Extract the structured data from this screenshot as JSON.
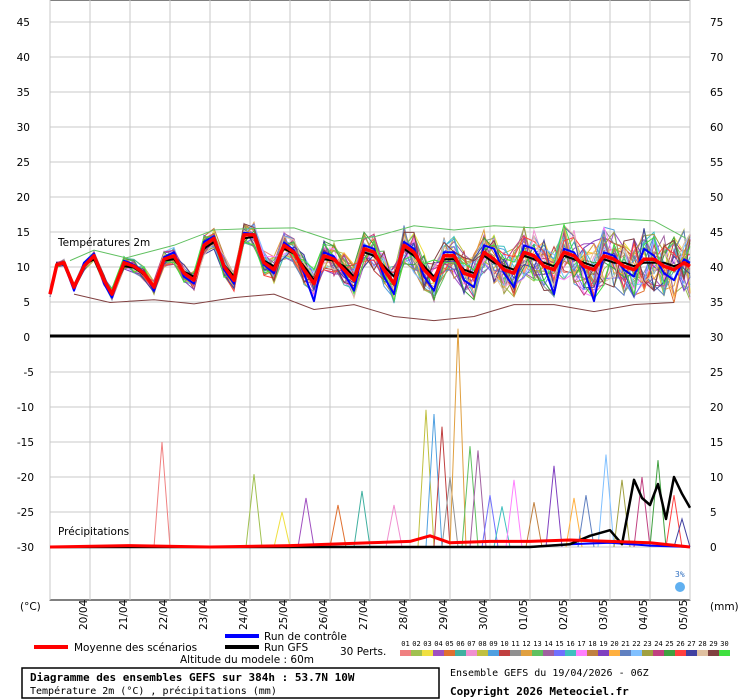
{
  "chart_data": {
    "type": "line",
    "temperature_axis_ticks_left": [
      "45",
      "40",
      "35",
      "30",
      "25",
      "20",
      "15",
      "10",
      "5",
      "0"
    ],
    "temperature_axis_ticks_right": [
      "75",
      "70",
      "65",
      "60",
      "55",
      "50",
      "45",
      "40",
      "35",
      "30"
    ],
    "precip_axis_ticks_left": [
      "-5",
      "-10",
      "-15",
      "-20",
      "-25",
      "-30"
    ],
    "precip_axis_ticks_right": [
      "25",
      "20",
      "15",
      "10",
      "5",
      "0"
    ],
    "left_unit": "(°C)",
    "right_unit": "(mm)",
    "x_dates": [
      "20/04",
      "21/04",
      "22/04",
      "23/04",
      "24/04",
      "25/04",
      "26/04",
      "27/04",
      "28/04",
      "29/04",
      "30/04",
      "01/05",
      "02/05",
      "03/05",
      "04/05",
      "05/05"
    ],
    "temp_panel_label": "Températures 2m",
    "precip_panel_label": "Précipitations",
    "x_days_range": [
      0,
      16
    ],
    "temp_ylim": [
      0,
      45
    ],
    "precip_ylim_mm": [
      0,
      30
    ],
    "precip_ylim_left": [
      -35,
      0
    ],
    "mean_temperature_2m": [
      [
        0.0,
        6.0
      ],
      [
        0.17,
        10.2
      ],
      [
        0.35,
        10.5
      ],
      [
        0.6,
        7.0
      ],
      [
        0.85,
        10.0
      ],
      [
        1.1,
        11.5
      ],
      [
        1.35,
        8.0
      ],
      [
        1.55,
        6.0
      ],
      [
        1.85,
        10.5
      ],
      [
        2.1,
        10.0
      ],
      [
        2.35,
        9.0
      ],
      [
        2.6,
        7.0
      ],
      [
        2.85,
        11.0
      ],
      [
        3.1,
        11.5
      ],
      [
        3.35,
        9.0
      ],
      [
        3.6,
        8.0
      ],
      [
        3.85,
        13.0
      ],
      [
        4.1,
        14.0
      ],
      [
        4.35,
        10.0
      ],
      [
        4.6,
        8.0
      ],
      [
        4.85,
        14.5
      ],
      [
        5.1,
        14.5
      ],
      [
        5.35,
        10.5
      ],
      [
        5.6,
        9.5
      ],
      [
        5.85,
        13.0
      ],
      [
        6.1,
        12.0
      ],
      [
        6.35,
        9.5
      ],
      [
        6.6,
        7.5
      ],
      [
        6.85,
        11.5
      ],
      [
        7.1,
        11.0
      ],
      [
        7.35,
        9.5
      ],
      [
        7.6,
        8.0
      ],
      [
        7.85,
        12.5
      ],
      [
        8.1,
        12.0
      ],
      [
        8.35,
        9.5
      ],
      [
        8.6,
        7.5
      ],
      [
        8.85,
        13.0
      ],
      [
        9.1,
        12.0
      ],
      [
        9.35,
        9.5
      ],
      [
        9.6,
        8.0
      ],
      [
        9.85,
        11.5
      ],
      [
        10.1,
        11.5
      ],
      [
        10.35,
        9.0
      ],
      [
        10.6,
        8.5
      ],
      [
        10.85,
        12.0
      ],
      [
        11.1,
        11.0
      ],
      [
        11.35,
        9.5
      ],
      [
        11.6,
        9.0
      ],
      [
        11.85,
        12.0
      ],
      [
        12.1,
        11.5
      ],
      [
        12.35,
        10.0
      ],
      [
        12.6,
        9.5
      ],
      [
        12.85,
        12.0
      ],
      [
        13.1,
        11.5
      ],
      [
        13.35,
        10.0
      ],
      [
        13.6,
        9.5
      ],
      [
        13.85,
        11.5
      ],
      [
        14.1,
        11.0
      ],
      [
        14.35,
        10.0
      ],
      [
        14.6,
        9.5
      ],
      [
        14.85,
        11.0
      ],
      [
        15.1,
        11.0
      ],
      [
        15.35,
        10.0
      ],
      [
        15.6,
        9.5
      ],
      [
        15.85,
        10.5
      ],
      [
        16.0,
        10.0
      ]
    ],
    "control_run_temperature_2m": [
      [
        0.0,
        6.0
      ],
      [
        0.17,
        10.3
      ],
      [
        0.35,
        10.4
      ],
      [
        0.6,
        6.5
      ],
      [
        0.85,
        10.5
      ],
      [
        1.1,
        11.8
      ],
      [
        1.35,
        7.5
      ],
      [
        1.55,
        5.5
      ],
      [
        1.85,
        10.8
      ],
      [
        2.1,
        10.2
      ],
      [
        2.35,
        9.2
      ],
      [
        2.6,
        6.5
      ],
      [
        2.85,
        11.3
      ],
      [
        3.1,
        12.0
      ],
      [
        3.35,
        8.5
      ],
      [
        3.6,
        7.5
      ],
      [
        3.85,
        13.5
      ],
      [
        4.1,
        14.3
      ],
      [
        4.35,
        9.5
      ],
      [
        4.6,
        7.5
      ],
      [
        4.85,
        14.8
      ],
      [
        5.1,
        14.6
      ],
      [
        5.35,
        10.2
      ],
      [
        5.6,
        9.0
      ],
      [
        5.85,
        13.4
      ],
      [
        6.1,
        12.3
      ],
      [
        6.35,
        9.0
      ],
      [
        6.6,
        5.0
      ],
      [
        6.85,
        12.0
      ],
      [
        7.1,
        11.4
      ],
      [
        7.35,
        9.0
      ],
      [
        7.6,
        6.5
      ],
      [
        7.85,
        13.0
      ],
      [
        8.1,
        12.5
      ],
      [
        8.35,
        8.5
      ],
      [
        8.6,
        6.0
      ],
      [
        8.85,
        13.5
      ],
      [
        9.1,
        12.5
      ],
      [
        9.35,
        8.5
      ],
      [
        9.6,
        6.5
      ],
      [
        9.85,
        12.0
      ],
      [
        10.1,
        12.0
      ],
      [
        10.35,
        8.0
      ],
      [
        10.6,
        7.0
      ],
      [
        10.85,
        13.0
      ],
      [
        11.1,
        12.5
      ],
      [
        11.35,
        9.0
      ],
      [
        11.6,
        7.0
      ],
      [
        11.85,
        13.0
      ],
      [
        12.1,
        12.5
      ],
      [
        12.35,
        10.0
      ],
      [
        12.6,
        6.0
      ],
      [
        12.85,
        12.5
      ],
      [
        13.1,
        12.0
      ],
      [
        13.35,
        9.5
      ],
      [
        13.6,
        5.0
      ],
      [
        13.85,
        12.0
      ],
      [
        14.1,
        11.5
      ],
      [
        14.35,
        9.5
      ],
      [
        14.6,
        8.5
      ],
      [
        14.85,
        12.5
      ],
      [
        15.1,
        11.5
      ],
      [
        15.35,
        9.0
      ],
      [
        15.6,
        8.0
      ],
      [
        15.85,
        11.0
      ],
      [
        16.0,
        10.5
      ]
    ],
    "gfs_run_temperature_2m": [
      [
        0.0,
        6.0
      ],
      [
        0.17,
        10.4
      ],
      [
        0.35,
        10.2
      ],
      [
        0.6,
        6.8
      ],
      [
        0.85,
        10.2
      ],
      [
        1.1,
        11.0
      ],
      [
        1.35,
        7.8
      ],
      [
        1.55,
        6.2
      ],
      [
        1.85,
        10.0
      ],
      [
        2.1,
        9.8
      ],
      [
        2.35,
        8.8
      ],
      [
        2.6,
        7.2
      ],
      [
        2.85,
        10.8
      ],
      [
        3.1,
        11.0
      ],
      [
        3.35,
        9.2
      ],
      [
        3.6,
        8.5
      ],
      [
        3.85,
        12.5
      ],
      [
        4.1,
        13.5
      ],
      [
        4.35,
        10.2
      ],
      [
        4.6,
        8.5
      ],
      [
        4.85,
        14.0
      ],
      [
        5.1,
        14.2
      ],
      [
        5.35,
        10.8
      ],
      [
        5.6,
        10.0
      ],
      [
        5.85,
        12.5
      ],
      [
        6.1,
        11.8
      ],
      [
        6.35,
        10.0
      ],
      [
        6.6,
        8.0
      ],
      [
        6.85,
        11.0
      ],
      [
        7.1,
        10.8
      ],
      [
        7.35,
        10.0
      ],
      [
        7.6,
        8.5
      ],
      [
        7.85,
        12.0
      ],
      [
        8.1,
        11.5
      ],
      [
        8.35,
        10.0
      ],
      [
        8.6,
        8.5
      ],
      [
        8.85,
        12.5
      ],
      [
        9.1,
        11.5
      ],
      [
        9.35,
        10.0
      ],
      [
        9.6,
        8.5
      ],
      [
        9.85,
        11.0
      ],
      [
        10.1,
        11.0
      ],
      [
        10.35,
        9.5
      ],
      [
        10.6,
        9.0
      ],
      [
        10.85,
        11.5
      ],
      [
        11.1,
        10.5
      ],
      [
        11.35,
        10.0
      ],
      [
        11.6,
        9.5
      ],
      [
        11.85,
        11.5
      ],
      [
        12.1,
        11.0
      ],
      [
        12.35,
        10.5
      ],
      [
        12.6,
        10.0
      ],
      [
        12.85,
        11.5
      ],
      [
        13.1,
        11.0
      ],
      [
        13.35,
        10.5
      ],
      [
        13.6,
        10.0
      ],
      [
        13.85,
        11.0
      ],
      [
        14.1,
        10.5
      ],
      [
        14.35,
        10.5
      ],
      [
        14.6,
        10.0
      ],
      [
        14.85,
        10.5
      ],
      [
        15.1,
        10.5
      ],
      [
        15.35,
        10.5
      ],
      [
        15.6,
        10.0
      ],
      [
        15.85,
        10.5
      ],
      [
        16.0,
        10.5
      ]
    ],
    "gfs_run_precip_mm": [
      [
        0.0,
        0
      ],
      [
        2.0,
        0
      ],
      [
        4.0,
        0
      ],
      [
        6.0,
        0
      ],
      [
        8.0,
        0
      ],
      [
        9.0,
        0
      ],
      [
        10.0,
        0
      ],
      [
        11.0,
        0
      ],
      [
        12.0,
        0
      ],
      [
        13.0,
        0.2
      ],
      [
        13.5,
        0.8
      ],
      [
        14.0,
        1.2
      ],
      [
        14.3,
        0.2
      ],
      [
        14.6,
        4.8
      ],
      [
        14.8,
        3.5
      ],
      [
        15.0,
        3.0
      ],
      [
        15.2,
        4.5
      ],
      [
        15.4,
        2.0
      ],
      [
        15.6,
        5.0
      ],
      [
        15.8,
        3.8
      ],
      [
        16.0,
        2.8
      ]
    ],
    "control_run_precip_mm": [
      [
        0,
        0
      ],
      [
        4,
        0
      ],
      [
        8,
        0
      ],
      [
        10,
        0
      ],
      [
        11,
        0
      ],
      [
        12,
        0
      ],
      [
        13,
        0.2
      ],
      [
        14,
        0.3
      ],
      [
        15,
        0.1
      ],
      [
        16,
        0
      ]
    ],
    "mean_precip_mm": [
      [
        0,
        0
      ],
      [
        2,
        0.1
      ],
      [
        4,
        0
      ],
      [
        6,
        0.1
      ],
      [
        8,
        0.3
      ],
      [
        9,
        0.4
      ],
      [
        9.5,
        0.8
      ],
      [
        10,
        0.3
      ],
      [
        11,
        0.4
      ],
      [
        12,
        0.4
      ],
      [
        13,
        0.5
      ],
      [
        14,
        0.4
      ],
      [
        15,
        0.3
      ],
      [
        16,
        0
      ]
    ],
    "precip_member_spikes_mm": [
      {
        "x": 2.8,
        "mm": 7.5
      },
      {
        "x": 5.1,
        "mm": 5.2
      },
      {
        "x": 5.8,
        "mm": 2.5
      },
      {
        "x": 6.4,
        "mm": 3.5
      },
      {
        "x": 7.2,
        "mm": 3.0
      },
      {
        "x": 7.8,
        "mm": 4.0
      },
      {
        "x": 8.6,
        "mm": 3.0
      },
      {
        "x": 9.4,
        "mm": 9.8
      },
      {
        "x": 9.6,
        "mm": 9.5
      },
      {
        "x": 9.8,
        "mm": 8.6
      },
      {
        "x": 10.0,
        "mm": 5.0
      },
      {
        "x": 10.2,
        "mm": 15.6
      },
      {
        "x": 10.5,
        "mm": 7.2
      },
      {
        "x": 10.7,
        "mm": 6.9
      },
      {
        "x": 11.0,
        "mm": 3.7
      },
      {
        "x": 11.3,
        "mm": 2.9
      },
      {
        "x": 11.6,
        "mm": 4.8
      },
      {
        "x": 12.1,
        "mm": 3.2
      },
      {
        "x": 12.6,
        "mm": 5.8
      },
      {
        "x": 13.1,
        "mm": 3.5
      },
      {
        "x": 13.4,
        "mm": 3.7
      },
      {
        "x": 13.9,
        "mm": 6.6
      },
      {
        "x": 14.3,
        "mm": 4.8
      },
      {
        "x": 14.8,
        "mm": 5.0
      },
      {
        "x": 15.2,
        "mm": 6.2
      },
      {
        "x": 15.6,
        "mm": 3.7
      },
      {
        "x": 15.8,
        "mm": 2.0
      }
    ],
    "member_temp_envelope_max": [
      [
        0.5,
        10.8
      ],
      [
        1.1,
        12.3
      ],
      [
        1.9,
        11.2
      ],
      [
        3.1,
        13.0
      ],
      [
        4.1,
        15.2
      ],
      [
        5.1,
        15.4
      ],
      [
        6.1,
        15.5
      ],
      [
        7.1,
        13.6
      ],
      [
        8.1,
        14.2
      ],
      [
        9.1,
        15.8
      ],
      [
        10.1,
        15.2
      ],
      [
        11.1,
        15.8
      ],
      [
        12.1,
        15.5
      ],
      [
        13.1,
        16.3
      ],
      [
        14.1,
        16.8
      ],
      [
        15.1,
        16.5
      ],
      [
        15.9,
        14.0
      ]
    ],
    "member_temp_envelope_min": [
      [
        0.6,
        6.0
      ],
      [
        1.5,
        4.8
      ],
      [
        2.6,
        5.2
      ],
      [
        3.6,
        4.6
      ],
      [
        4.6,
        5.5
      ],
      [
        5.6,
        6.0
      ],
      [
        6.6,
        3.8
      ],
      [
        7.6,
        4.5
      ],
      [
        8.6,
        2.8
      ],
      [
        9.6,
        2.2
      ],
      [
        10.6,
        2.8
      ],
      [
        11.6,
        4.5
      ],
      [
        12.6,
        4.5
      ],
      [
        13.6,
        3.5
      ],
      [
        14.6,
        4.5
      ],
      [
        15.6,
        4.8
      ]
    ],
    "series": [
      {
        "name": "Moyenne des scénarios",
        "color": "#ff0000"
      },
      {
        "name": "Run de contrôle",
        "color": "#0000ff"
      },
      {
        "name": "Run GFS",
        "color": "#000000"
      }
    ],
    "grid": true
  },
  "legend": {
    "mean_label": "Moyenne des scénarios",
    "control_label": "Run de contrôle",
    "gfs_label": "Run GFS",
    "altitude_label": "Altitude du modele : 60m",
    "perts_label": "30 Perts.",
    "pert_numbers": [
      "01",
      "02",
      "03",
      "04",
      "05",
      "06",
      "07",
      "08",
      "09",
      "10",
      "11",
      "12",
      "13",
      "14",
      "15",
      "16",
      "17",
      "18",
      "19",
      "20",
      "21",
      "22",
      "23",
      "24",
      "25",
      "26",
      "27",
      "28",
      "29",
      "30"
    ],
    "pert_colors": [
      "#f08080",
      "#a0c050",
      "#f0e040",
      "#a050c0",
      "#e07030",
      "#40b0a0",
      "#f090d0",
      "#c0c040",
      "#50a0e0",
      "#c04040",
      "#909090",
      "#e0a040",
      "#60c060",
      "#a060a0",
      "#7070ff",
      "#40c0c0",
      "#ff80ff",
      "#c08040",
      "#8040c0",
      "#ffb040",
      "#6080c0",
      "#80c0ff",
      "#a0a040",
      "#c04080",
      "#40a040",
      "#ff4040",
      "#4040a0",
      "#e0c0a0",
      "#804040",
      "#40e040"
    ]
  },
  "info": {
    "title": "Diagramme des ensembles GEFS sur 384h : 53.7N 10W",
    "subtitle": "Température 2m (°C) , précipitations (mm)",
    "ensemble_run": "Ensemble GEFS du 19/04/2026 - 06Z",
    "copyright": "Copyright 2026 Meteociel.fr",
    "snow_marker": "3%"
  }
}
